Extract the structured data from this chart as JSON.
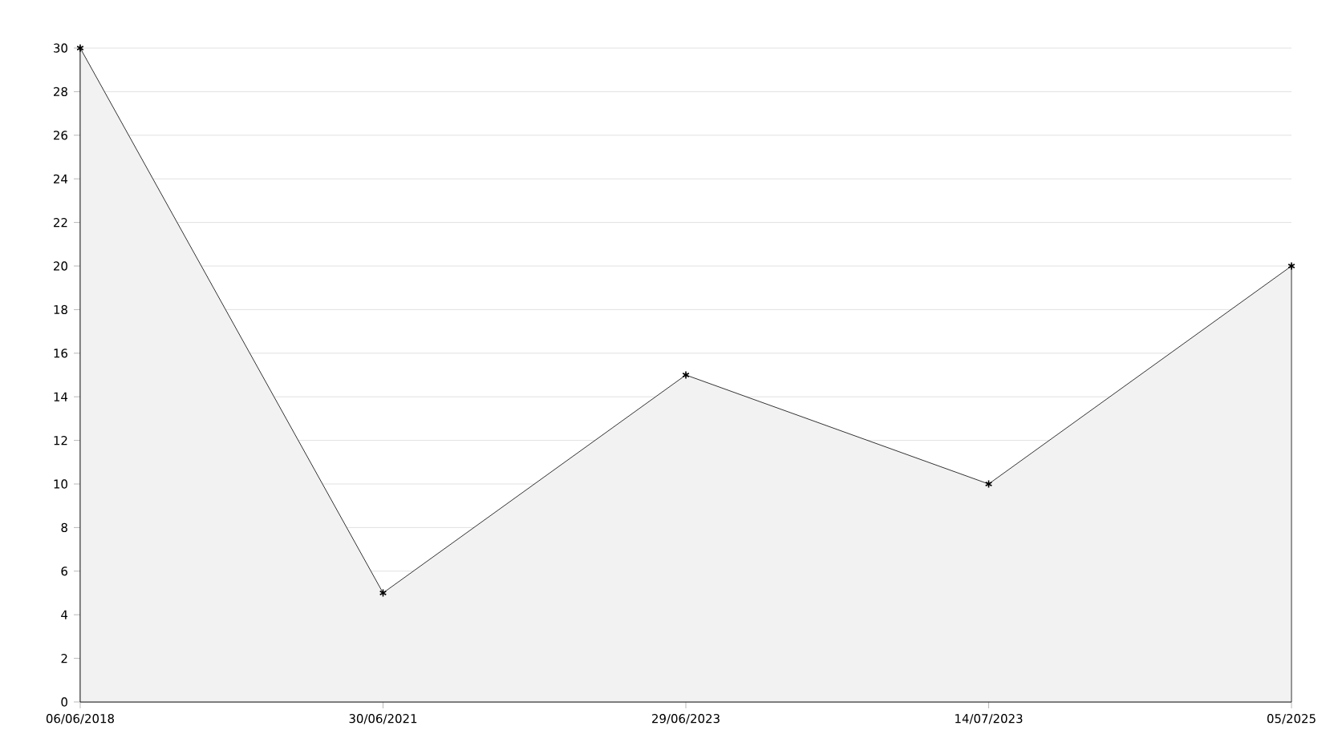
{
  "chart_data": {
    "type": "area",
    "categories": [
      "06/06/2018",
      "30/06/2021",
      "29/06/2023",
      "14/07/2023",
      "05/2025"
    ],
    "values": [
      30,
      5,
      15,
      10,
      20
    ],
    "color": "#000000",
    "ylim": [
      0,
      30
    ],
    "yticks": [
      0,
      2,
      4,
      6,
      8,
      10,
      12,
      14,
      16,
      18,
      20,
      22,
      24,
      26,
      28,
      30
    ],
    "grid": "y",
    "marker": "cross"
  }
}
